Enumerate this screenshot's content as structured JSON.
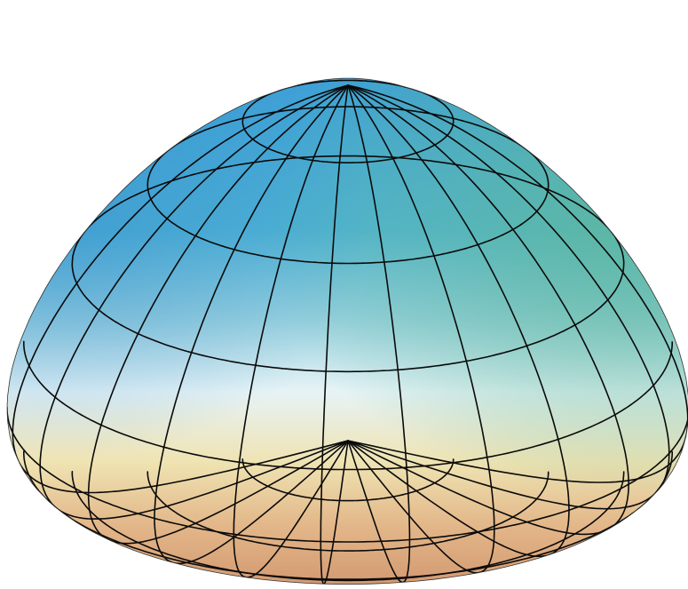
{
  "figure": {
    "subject": "spheroid-surface-wireframe",
    "meridian_count": 24,
    "parallel_count": 9,
    "grid_line_color": "#0a0a0a",
    "surface_gradient": {
      "top_left": "#3d9fd6",
      "top_right": "#5fb89a",
      "equator": "#e6f3f6",
      "lower": "#efe3b2",
      "bottom": "#d49a72"
    }
  }
}
